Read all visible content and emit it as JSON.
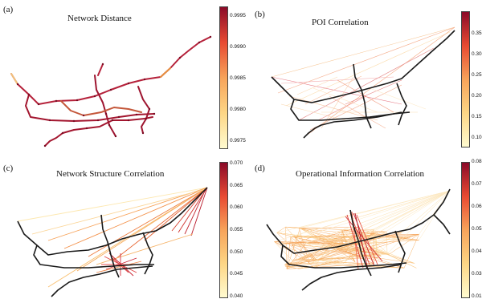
{
  "panels": {
    "a": {
      "label": "(a)",
      "title": "Network Distance",
      "ticks": [
        "0.9995",
        "0.9990",
        "0.9985",
        "0.9980",
        "0.9975"
      ],
      "colors": [
        "#fffbd0",
        "#fdd685",
        "#f7a35a",
        "#e84a32",
        "#8b0a28"
      ]
    },
    "b": {
      "label": "(b)",
      "title": "POI Correlation",
      "ticks": [
        "0.35",
        "0.30",
        "0.25",
        "0.20",
        "0.15",
        "0.10"
      ],
      "colors": [
        "#fffbd0",
        "#fdd685",
        "#f7a35a",
        "#e84a32",
        "#8b0a28"
      ]
    },
    "c": {
      "label": "(c)",
      "title": "Network Structure Correlation",
      "ticks": [
        "0.070",
        "0.065",
        "0.060",
        "0.055",
        "0.050",
        "0.045",
        "0.040"
      ],
      "colors": [
        "#fffbd0",
        "#fdd685",
        "#f7a35a",
        "#e84a32",
        "#8b0a28"
      ]
    },
    "d": {
      "label": "(d)",
      "title": "Operational Information Correlation",
      "ticks": [
        "0.08",
        "0.07",
        "0.06",
        "0.05",
        "0.04",
        "0.03",
        "0.01"
      ],
      "colors": [
        "#fffbd0",
        "#fdd685",
        "#f7a35a",
        "#e84a32",
        "#8b0a28"
      ]
    }
  }
}
